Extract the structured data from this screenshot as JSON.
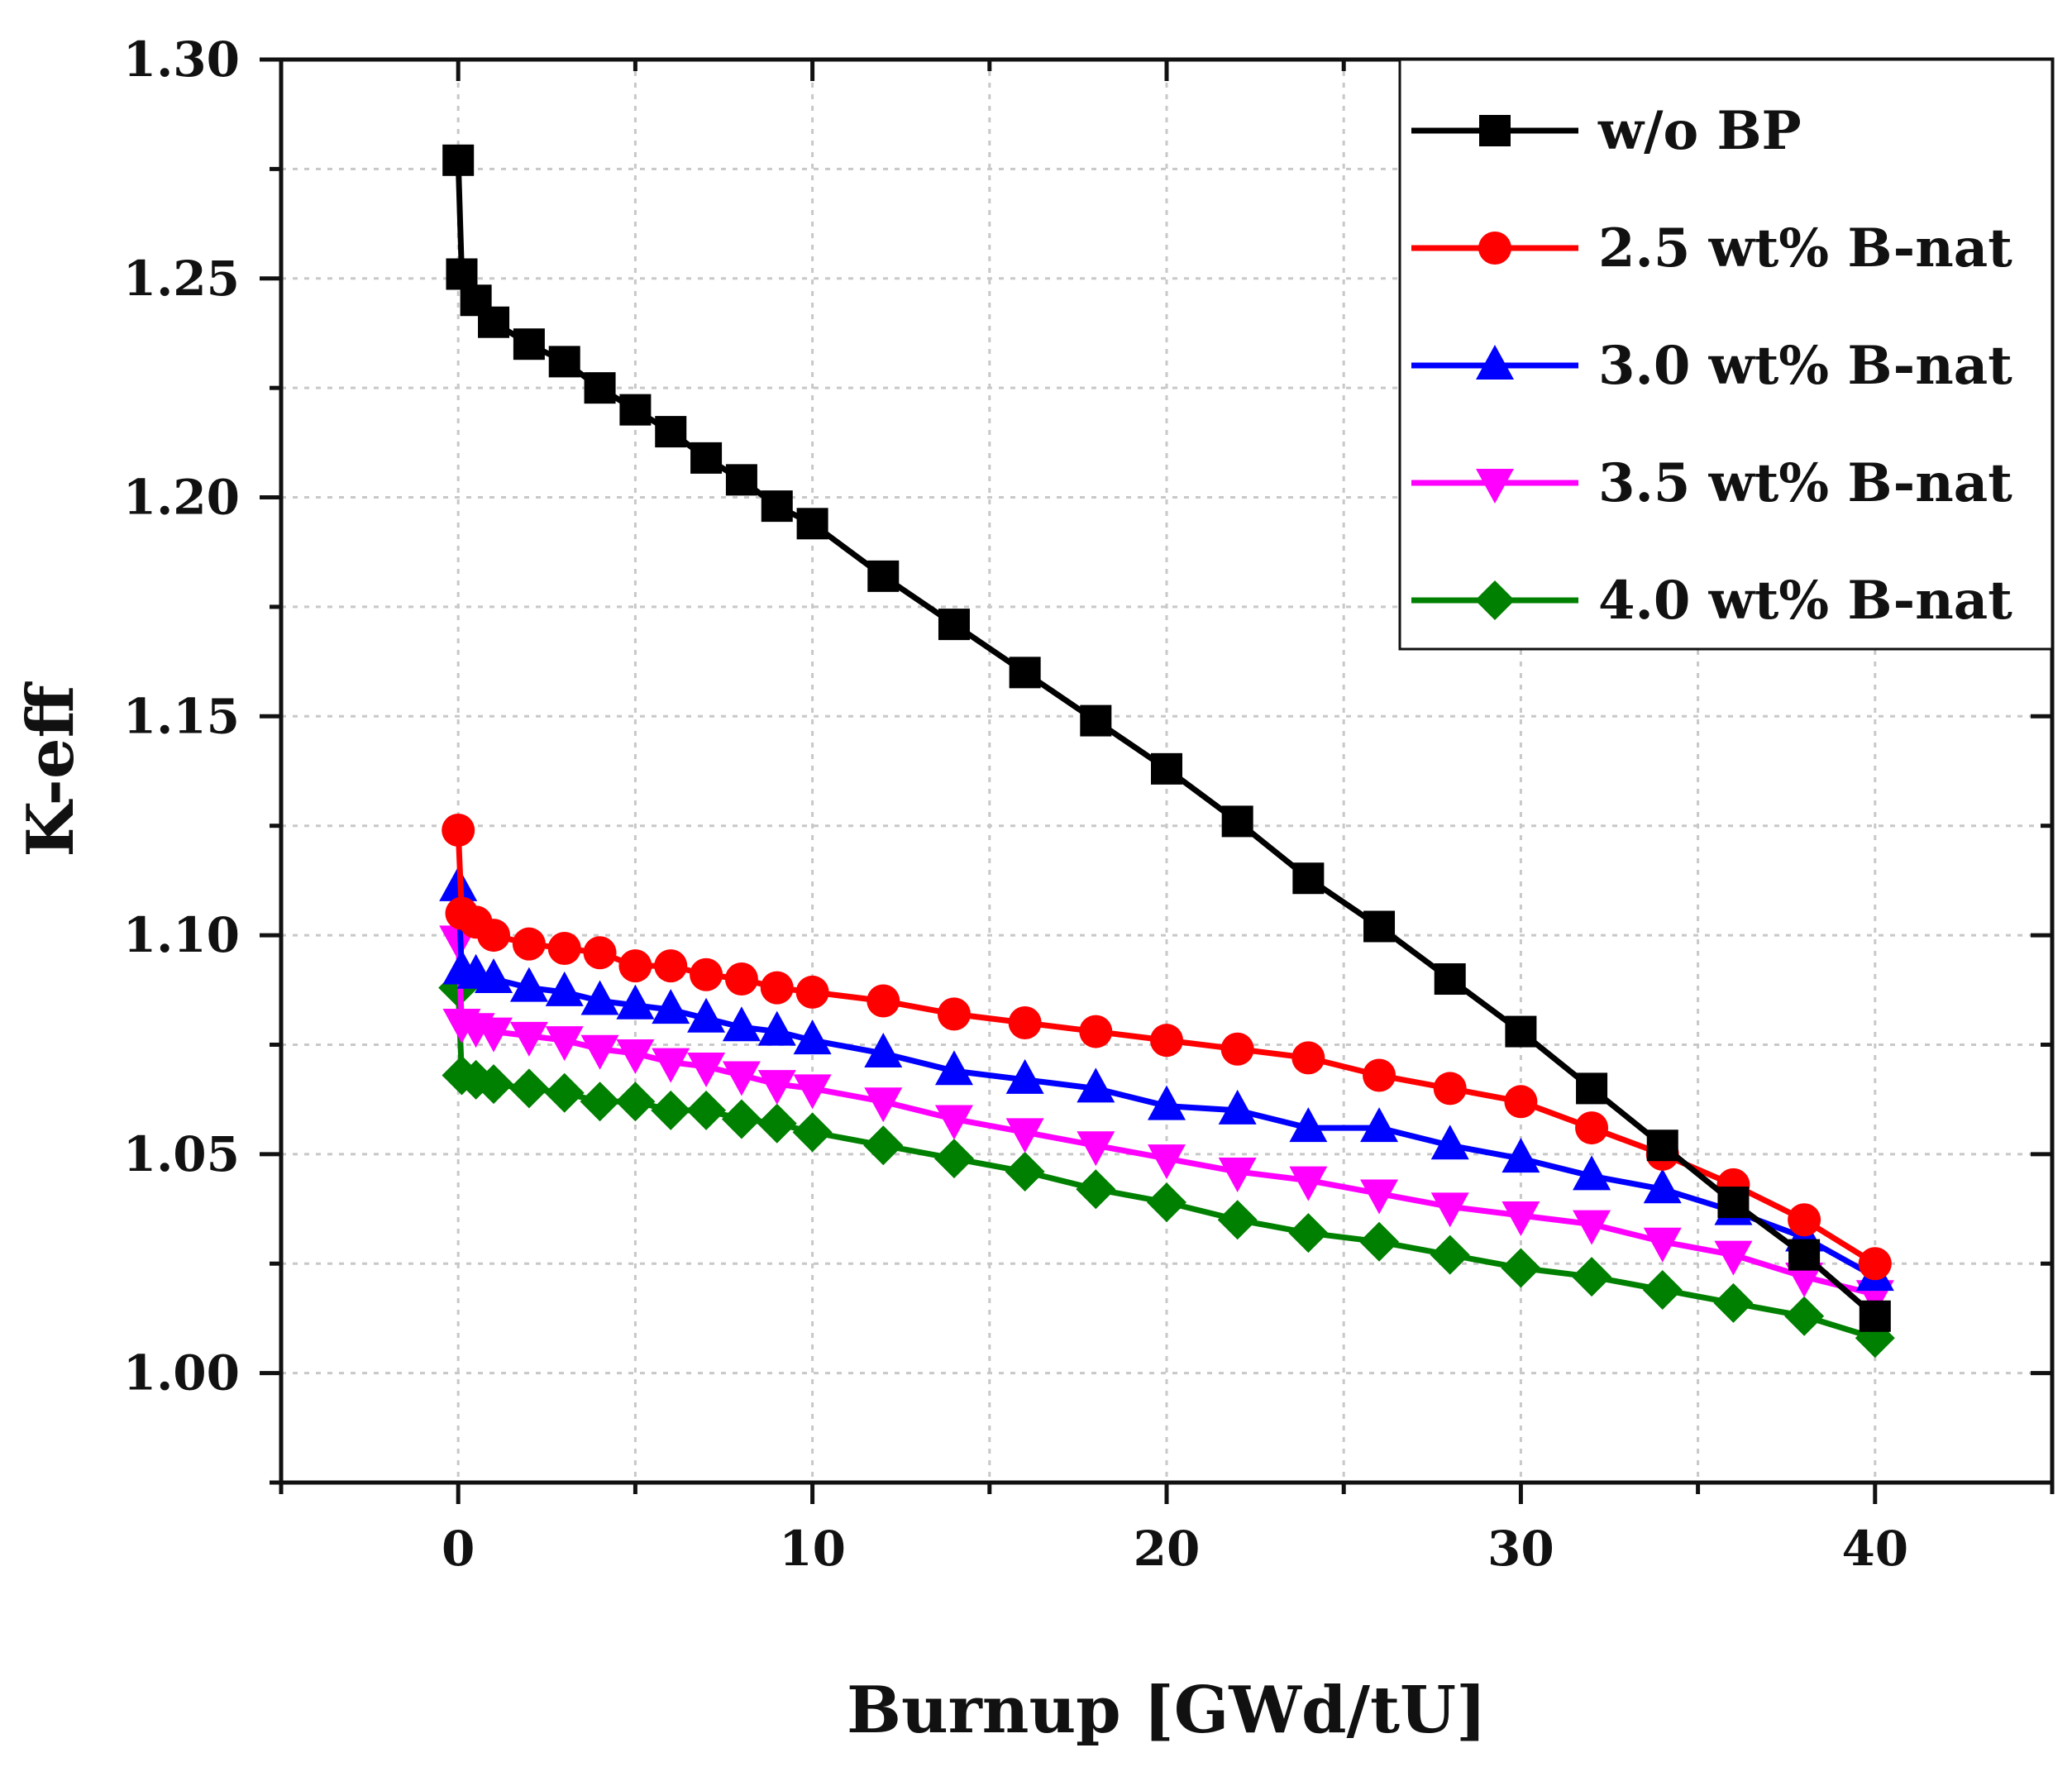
{
  "chart_data": {
    "type": "line",
    "title": "",
    "xlabel": "Burnup [GWd/tU]",
    "ylabel": "K-eff",
    "xlim": [
      -5,
      45
    ],
    "ylim": [
      0.975,
      1.3
    ],
    "xticks": [
      0,
      10,
      20,
      30,
      40
    ],
    "xtick_labels": [
      "0",
      "10",
      "20",
      "30",
      "40"
    ],
    "yticks": [
      1.0,
      1.05,
      1.1,
      1.15,
      1.2,
      1.25,
      1.3
    ],
    "ytick_labels": [
      "1.00",
      "1.05",
      "1.10",
      "1.15",
      "1.20",
      "1.25",
      "1.30"
    ],
    "grid": true,
    "legend_position": "top-right",
    "series": [
      {
        "name": "w/o BP",
        "color": "#000000",
        "marker": "square",
        "x": [
          0,
          0.1,
          0.5,
          1,
          2,
          3,
          4,
          5,
          6,
          7,
          8,
          9,
          10,
          12,
          14,
          16,
          18,
          20,
          22,
          24,
          26,
          28,
          30,
          32,
          34,
          36,
          38,
          40
        ],
        "y": [
          1.277,
          1.251,
          1.245,
          1.24,
          1.235,
          1.231,
          1.225,
          1.22,
          1.215,
          1.209,
          1.204,
          1.198,
          1.194,
          1.182,
          1.171,
          1.16,
          1.149,
          1.138,
          1.126,
          1.113,
          1.102,
          1.09,
          1.078,
          1.065,
          1.052,
          1.039,
          1.027,
          1.013
        ]
      },
      {
        "name": "2.5 wt% B-nat",
        "color": "#ff0000",
        "marker": "circle",
        "x": [
          0,
          0.1,
          0.5,
          1,
          2,
          3,
          4,
          5,
          6,
          7,
          8,
          9,
          10,
          12,
          14,
          16,
          18,
          20,
          22,
          24,
          26,
          28,
          30,
          32,
          34,
          36,
          38,
          40
        ],
        "y": [
          1.124,
          1.105,
          1.103,
          1.1,
          1.098,
          1.097,
          1.096,
          1.093,
          1.093,
          1.091,
          1.09,
          1.088,
          1.087,
          1.085,
          1.082,
          1.08,
          1.078,
          1.076,
          1.074,
          1.072,
          1.068,
          1.065,
          1.062,
          1.056,
          1.05,
          1.043,
          1.035,
          1.025
        ]
      },
      {
        "name": "3.0 wt% B-nat",
        "color": "#0000ff",
        "marker": "triangle-up",
        "x": [
          0,
          0.1,
          0.5,
          1,
          2,
          3,
          4,
          5,
          6,
          7,
          8,
          9,
          10,
          12,
          14,
          16,
          18,
          20,
          22,
          24,
          26,
          28,
          30,
          32,
          34,
          36,
          38,
          40
        ],
        "y": [
          1.111,
          1.092,
          1.091,
          1.09,
          1.088,
          1.087,
          1.085,
          1.084,
          1.083,
          1.081,
          1.079,
          1.078,
          1.076,
          1.073,
          1.069,
          1.067,
          1.065,
          1.061,
          1.06,
          1.056,
          1.056,
          1.052,
          1.049,
          1.045,
          1.042,
          1.037,
          1.031,
          1.022
        ]
      },
      {
        "name": "3.5 wt% B-nat",
        "color": "#ff00ff",
        "marker": "triangle-down",
        "x": [
          0,
          0.1,
          0.5,
          1,
          2,
          3,
          4,
          5,
          6,
          7,
          8,
          9,
          10,
          12,
          14,
          16,
          18,
          20,
          22,
          24,
          26,
          28,
          30,
          32,
          34,
          36,
          38,
          40
        ],
        "y": [
          1.099,
          1.08,
          1.079,
          1.078,
          1.077,
          1.076,
          1.074,
          1.073,
          1.071,
          1.07,
          1.068,
          1.066,
          1.065,
          1.062,
          1.058,
          1.055,
          1.052,
          1.049,
          1.046,
          1.044,
          1.041,
          1.038,
          1.036,
          1.034,
          1.03,
          1.027,
          1.022,
          1.018
        ]
      },
      {
        "name": "4.0 wt% B-nat",
        "color": "#008000",
        "marker": "diamond",
        "x": [
          0,
          0.1,
          0.5,
          1,
          2,
          3,
          4,
          5,
          6,
          7,
          8,
          9,
          10,
          12,
          14,
          16,
          18,
          20,
          22,
          24,
          26,
          28,
          30,
          32,
          34,
          36,
          38,
          40
        ],
        "y": [
          1.088,
          1.068,
          1.067,
          1.066,
          1.065,
          1.064,
          1.062,
          1.062,
          1.06,
          1.06,
          1.058,
          1.057,
          1.055,
          1.052,
          1.049,
          1.046,
          1.042,
          1.039,
          1.035,
          1.032,
          1.03,
          1.027,
          1.024,
          1.022,
          1.019,
          1.016,
          1.013,
          1.008
        ]
      }
    ]
  }
}
